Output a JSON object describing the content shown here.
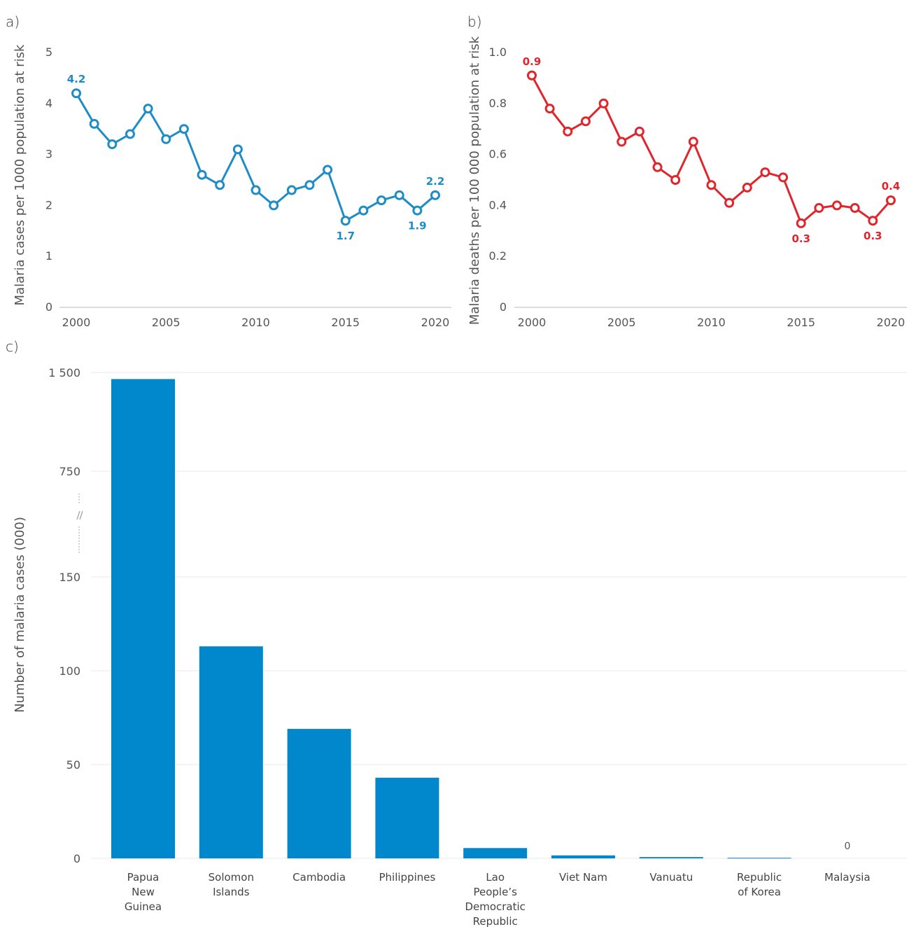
{
  "panels": {
    "a": {
      "label": "a)"
    },
    "b": {
      "label": "b)"
    },
    "c": {
      "label": "c)"
    }
  },
  "chart_data": [
    {
      "id": "a",
      "type": "line",
      "xlabel": "",
      "ylabel": "Malaria cases per 1000 population at risk",
      "x": [
        2000,
        2001,
        2002,
        2003,
        2004,
        2005,
        2006,
        2007,
        2008,
        2009,
        2010,
        2011,
        2012,
        2013,
        2014,
        2015,
        2016,
        2017,
        2018,
        2019,
        2020
      ],
      "values": [
        4.2,
        3.6,
        3.2,
        3.4,
        3.9,
        3.3,
        3.5,
        2.6,
        2.4,
        3.1,
        2.3,
        2.0,
        2.3,
        2.4,
        2.7,
        1.7,
        1.9,
        2.1,
        2.2,
        1.9,
        2.2
      ],
      "ylim": [
        0,
        5
      ],
      "yticks": [
        "0",
        "1",
        "2",
        "3",
        "4",
        "5"
      ],
      "xticks": [
        "2000",
        "2005",
        "2010",
        "2015",
        "2020"
      ],
      "color": "#1f8dc5",
      "data_labels": [
        {
          "x": 2000,
          "text": "4.2",
          "position": "above"
        },
        {
          "x": 2015,
          "text": "1.7",
          "position": "below"
        },
        {
          "x": 2019,
          "text": "1.9",
          "position": "below"
        },
        {
          "x": 2020,
          "text": "2.2",
          "position": "above"
        }
      ],
      "grid": false
    },
    {
      "id": "b",
      "type": "line",
      "xlabel": "",
      "ylabel": "Malaria deaths per 100 000 population at risk",
      "x": [
        2000,
        2001,
        2002,
        2003,
        2004,
        2005,
        2006,
        2007,
        2008,
        2009,
        2010,
        2011,
        2012,
        2013,
        2014,
        2015,
        2016,
        2017,
        2018,
        2019,
        2020
      ],
      "values": [
        0.91,
        0.78,
        0.69,
        0.73,
        0.8,
        0.65,
        0.69,
        0.55,
        0.5,
        0.65,
        0.48,
        0.41,
        0.47,
        0.53,
        0.51,
        0.33,
        0.39,
        0.4,
        0.39,
        0.34,
        0.42
      ],
      "ylim": [
        0,
        1.0
      ],
      "yticks": [
        "0",
        "0.2",
        "0.4",
        "0.6",
        "0.8",
        "1.0"
      ],
      "xticks": [
        "2000",
        "2005",
        "2010",
        "2015",
        "2020"
      ],
      "color": "#e0262c",
      "data_labels": [
        {
          "x": 2000,
          "text": "0.9",
          "position": "above"
        },
        {
          "x": 2015,
          "text": "0.3",
          "position": "below"
        },
        {
          "x": 2019,
          "text": "0.3",
          "position": "below"
        },
        {
          "x": 2020,
          "text": "0.4",
          "position": "above"
        }
      ],
      "grid": false
    },
    {
      "id": "c",
      "type": "bar",
      "xlabel": "",
      "ylabel": "Number of malaria cases (000)",
      "categories": [
        [
          "Papua",
          "New",
          "Guinea"
        ],
        [
          "Solomon",
          "Islands"
        ],
        [
          "Cambodia"
        ],
        [
          "Philippines"
        ],
        [
          "Lao",
          "People’s",
          "Democratic",
          "Republic"
        ],
        [
          "Viet Nam"
        ],
        [
          "Vanuatu"
        ],
        [
          "Republic",
          "of Korea"
        ],
        [
          "Malaysia"
        ]
      ],
      "values": [
        1450,
        113,
        69,
        43,
        5.5,
        1.6,
        0.7,
        0.3,
        0
      ],
      "yticks": [
        "0",
        "50",
        "100",
        "150",
        "750",
        "1 500"
      ],
      "ytick_values": [
        0,
        50,
        100,
        150,
        750,
        1500
      ],
      "axis_break": "between 150 and 750",
      "data_labels": [
        {
          "index": 8,
          "text": "0"
        }
      ],
      "color": "#0087cc",
      "grid": true
    }
  ]
}
